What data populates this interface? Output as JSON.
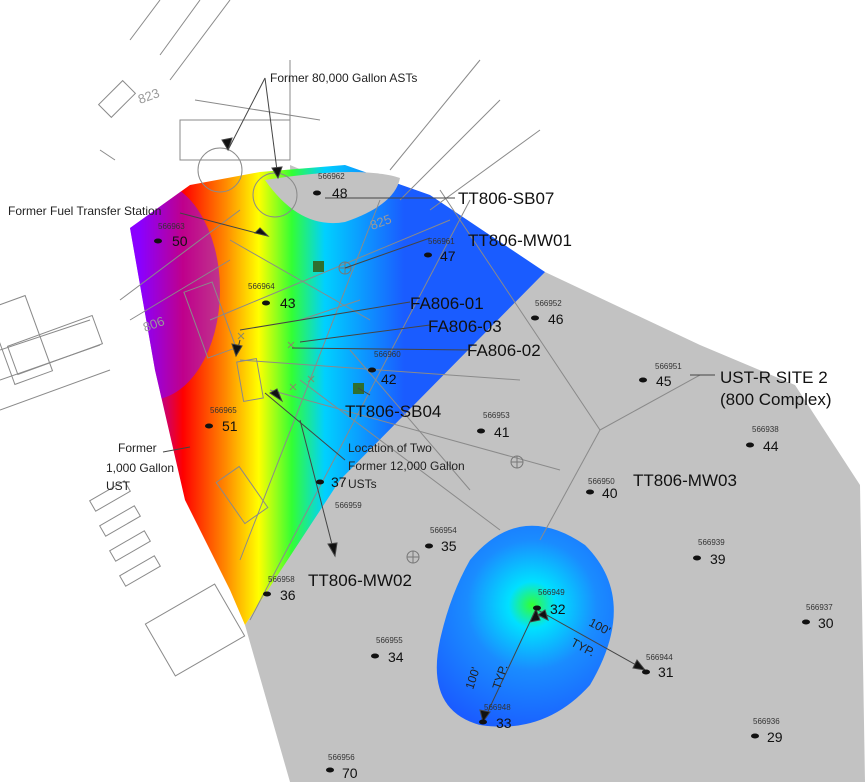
{
  "colors": {
    "grey_zone": "#c2c2c2",
    "lines": "#7a7a7a",
    "gradient": [
      "#8a00ff",
      "#ff0000",
      "#ff8a00",
      "#ffff00",
      "#33ff33",
      "#00d0ff",
      "#1a5cff"
    ]
  },
  "site_label": {
    "line1": "UST-R SITE 2",
    "line2": "(800 Complex)"
  },
  "ghost_labels": [
    "823",
    "825",
    "806"
  ],
  "feature_labels": {
    "asts": "Former 80,000 Gallon ASTs",
    "fuel_transfer": "Former Fuel Transfer Station",
    "ust_line1": "Former",
    "ust_line2": "1,000 Gallon",
    "ust_line3": "UST",
    "two_usts_line1": "Location of Two",
    "two_usts_line2": "Former 12,000 Gallon",
    "two_usts_line3": "USTs"
  },
  "well_labels": {
    "sb07": "TT806-SB07",
    "mw01": "TT806-MW01",
    "fa01": "FA806-01",
    "fa03": "FA806-03",
    "fa02": "FA806-02",
    "sb04": "TT806-SB04",
    "mw03": "TT806-MW03",
    "mw02": "TT806-MW02"
  },
  "typ_labels": {
    "dist_a": "100'",
    "typ_a": "TYP.",
    "dist_b": "100'",
    "typ_b": "TYP."
  },
  "samples": [
    {
      "id": "566962",
      "num": "48"
    },
    {
      "id": "566963",
      "num": "50"
    },
    {
      "id": "566961",
      "num": "47"
    },
    {
      "id": "566964",
      "num": "43"
    },
    {
      "id": "566952",
      "num": "46"
    },
    {
      "id": "566960",
      "num": "42"
    },
    {
      "id": "566951",
      "num": "45"
    },
    {
      "id": "566965",
      "num": "51"
    },
    {
      "id": "566953",
      "num": "41"
    },
    {
      "id": "566938",
      "num": "44"
    },
    {
      "id": "566950",
      "num": "40"
    },
    {
      "id": "566959",
      "num": "37"
    },
    {
      "id": "566954",
      "num": "35"
    },
    {
      "id": "566939",
      "num": "39"
    },
    {
      "id": "566958",
      "num": "36"
    },
    {
      "id": "566949",
      "num": "32"
    },
    {
      "id": "566937",
      "num": "30"
    },
    {
      "id": "566955",
      "num": "34"
    },
    {
      "id": "566944",
      "num": "31"
    },
    {
      "id": "566948",
      "num": "33"
    },
    {
      "id": "566936",
      "num": "29"
    },
    {
      "id": "566956",
      "num": "70"
    }
  ]
}
